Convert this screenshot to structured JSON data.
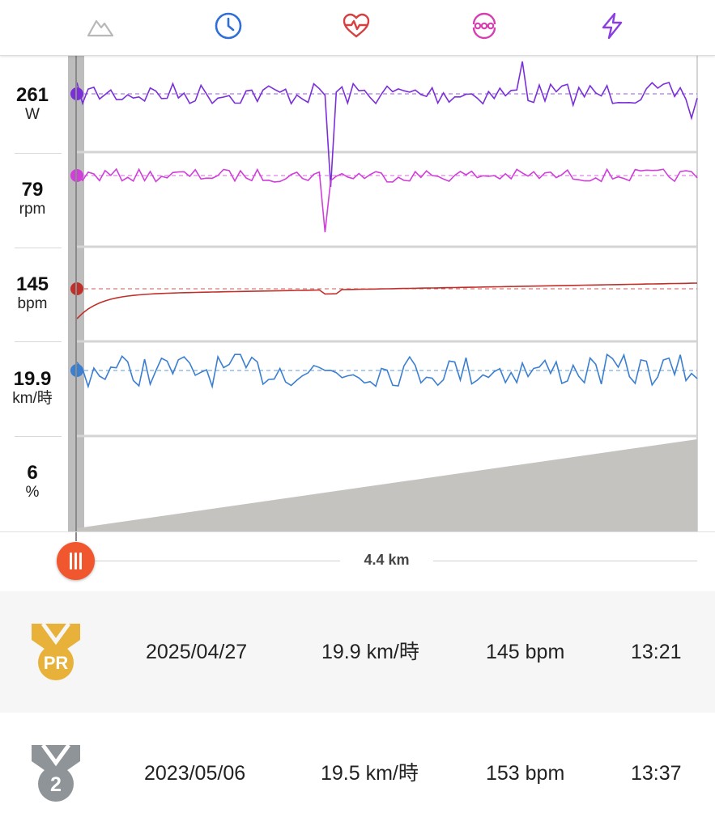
{
  "tabs": [
    {
      "icon": "mountain-icon",
      "color": "#b8b8b8"
    },
    {
      "icon": "clock-icon",
      "color": "#2f6fd6"
    },
    {
      "icon": "heart-rate-icon",
      "color": "#d64040"
    },
    {
      "icon": "cadence-icon",
      "color": "#d63fb0"
    },
    {
      "icon": "lightning-icon",
      "color": "#8a3fe0"
    }
  ],
  "metrics": [
    {
      "name": "power",
      "value": "261",
      "unit": "W",
      "color": "#7a2fd8"
    },
    {
      "name": "cadence",
      "value": "79",
      "unit": "rpm",
      "color": "#d03fd8"
    },
    {
      "name": "heart-rate",
      "value": "145",
      "unit": "bpm",
      "color": "#c0302a"
    },
    {
      "name": "speed",
      "value": "19.9",
      "unit": "km/時",
      "color": "#3b7fd0"
    },
    {
      "name": "grade",
      "value": "6",
      "unit": "%",
      "color": "#c5c3c0"
    }
  ],
  "scrubber": {
    "distance_label": "4.4 km"
  },
  "records": [
    {
      "badge": "PR",
      "badge_color": "#e8b23a",
      "date": "2025/04/27",
      "speed": "19.9 km/時",
      "heart_rate": "145 bpm",
      "time": "13:21"
    },
    {
      "badge": "2",
      "badge_color": "#8e9498",
      "date": "2023/05/06",
      "speed": "19.5 km/時",
      "heart_rate": "153 bpm",
      "time": "13:37"
    }
  ]
}
